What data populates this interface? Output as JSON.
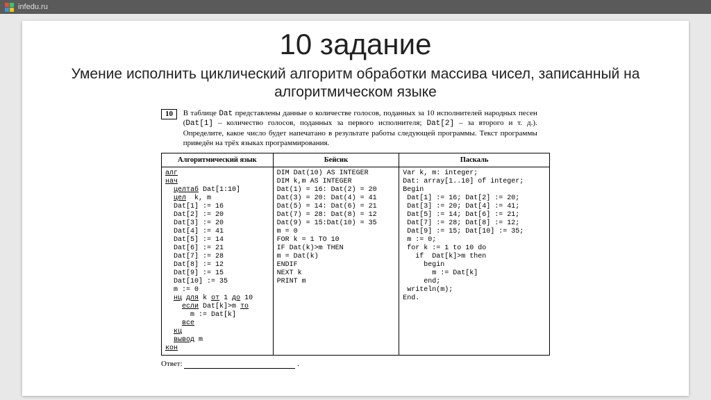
{
  "topbar": {
    "site": "infedu.ru"
  },
  "logo_colors": [
    "#e74c3c",
    "#2ecc71",
    "#3498db",
    "#f1c40f"
  ],
  "title": {
    "text": "10 задание",
    "fontsize": 42
  },
  "subtitle": {
    "text": "Умение исполнить циклический алгоритм обработки массива чисел, записанный на алгоритмическом языке",
    "fontsize": 21
  },
  "problem": {
    "number": "10",
    "text_plain": "В таблице Dat представлены данные о количестве голосов, поданных за 10 исполнителей народных песен (Dat[1] – количество голосов, поданных за первого исполнителя; Dat[2] – за второго и т. д.). Определите, какое число будет напечатано в результате работы следующей программы. Текст программы приведён на трёх языках программирования."
  },
  "table": {
    "headers": [
      "Алгоритмический язык",
      "Бейсик",
      "Паскаль"
    ],
    "col1_lines": [
      {
        "t": "алг",
        "u": true
      },
      {
        "t": "нач",
        "u": true
      },
      {
        "t": "  целтаб Dat[1:10]",
        "u": true,
        "upart": "целтаб"
      },
      {
        "t": "  цел  k, m",
        "u": true,
        "upart": "цел"
      },
      {
        "t": "  Dat[1] := 16"
      },
      {
        "t": "  Dat[2] := 20"
      },
      {
        "t": "  Dat[3] := 20"
      },
      {
        "t": "  Dat[4] := 41"
      },
      {
        "t": "  Dat[5] := 14"
      },
      {
        "t": "  Dat[6] := 21"
      },
      {
        "t": "  Dat[7] := 28"
      },
      {
        "t": "  Dat[8] := 12"
      },
      {
        "t": "  Dat[9] := 15"
      },
      {
        "t": "  Dat[10] := 35"
      },
      {
        "t": "  m := 0"
      },
      {
        "t": "  нц для k от 1 до 10",
        "u": true,
        "upart": "нц для от до"
      },
      {
        "t": "    если Dat[k]>m то",
        "u": true,
        "upart": "если то"
      },
      {
        "t": "      m := Dat[k]"
      },
      {
        "t": "    все",
        "u": true
      },
      {
        "t": "  кц",
        "u": true
      },
      {
        "t": "  вывод m",
        "u": true,
        "upart": "вывод"
      },
      {
        "t": "кон",
        "u": true
      }
    ],
    "col2": "DIM Dat(10) AS INTEGER\nDIM k,m AS INTEGER\nDat(1) = 16: Dat(2) = 20\nDat(3) = 20: Dat(4) = 41\nDat(5) = 14: Dat(6) = 21\nDat(7) = 28: Dat(8) = 12\nDat(9) = 15:Dat(10) = 35\nm = 0\nFOR k = 1 TO 10\nIF Dat(k)>m THEN\nm = Dat(k)\nENDIF\nNEXT k\nPRINT m",
    "col3": "Var k, m: integer;\nDat: array[1..10] of integer;\nBegin\n Dat[1] := 16; Dat[2] := 20;\n Dat[3] := 20; Dat[4] := 41;\n Dat[5] := 14; Dat[6] := 21;\n Dat[7] := 28; Dat[8] := 12;\n Dat[9] := 15; Dat[10] := 35;\n m := 0;\n for k := 1 to 10 do\n   if  Dat[k]>m then\n     begin\n       m := Dat[k]\n     end;\n writeln(m);\nEnd."
  },
  "answer_label": "Ответ:"
}
